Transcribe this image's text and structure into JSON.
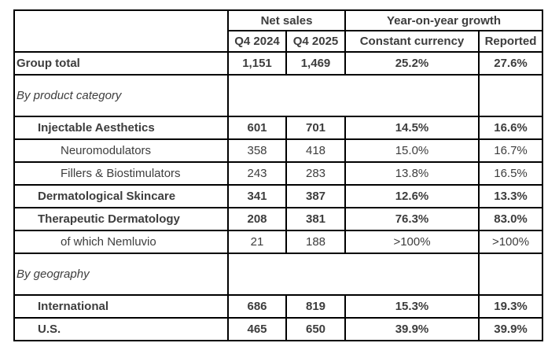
{
  "colors": {
    "border": "#000000",
    "text": "#3d3d3d",
    "background": "#ffffff"
  },
  "table": {
    "header": {
      "net_sales": "Net sales",
      "yoy_growth": "Year-on-year growth",
      "q4_2024": "Q4 2024",
      "q4_2025": "Q4 2025",
      "constant_currency": "Constant currency",
      "reported": "Reported"
    },
    "rows": [
      {
        "name": "group-total",
        "type": "data",
        "bold": true,
        "indent": 0,
        "label": "Group total",
        "values": [
          "1,151",
          "1,469",
          "25.2%",
          "27.6%"
        ]
      },
      {
        "name": "by-product-category",
        "type": "section",
        "label": "By product category"
      },
      {
        "name": "injectable-aesthetics",
        "type": "data",
        "bold": true,
        "indent": 1,
        "label": "Injectable Aesthetics",
        "values": [
          "601",
          "701",
          "14.5%",
          "16.6%"
        ]
      },
      {
        "name": "neuromodulators",
        "type": "data",
        "bold": false,
        "indent": 2,
        "label": "Neuromodulators",
        "values": [
          "358",
          "418",
          "15.0%",
          "16.7%"
        ]
      },
      {
        "name": "fillers-biostimulators",
        "type": "data",
        "bold": false,
        "indent": 2,
        "label": "Fillers & Biostimulators",
        "values": [
          "243",
          "283",
          "13.8%",
          "16.5%"
        ]
      },
      {
        "name": "dermatological-skincare",
        "type": "data",
        "bold": true,
        "indent": 1,
        "label": "Dermatological Skincare",
        "values": [
          "341",
          "387",
          "12.6%",
          "13.3%"
        ]
      },
      {
        "name": "therapeutic-dermatology",
        "type": "data",
        "bold": true,
        "indent": 1,
        "label": "Therapeutic Dermatology",
        "values": [
          "208",
          "381",
          "76.3%",
          "83.0%"
        ]
      },
      {
        "name": "of-which-nemluvio",
        "type": "data",
        "bold": false,
        "indent": 2,
        "label": "of which Nemluvio",
        "values": [
          "21",
          "188",
          ">100%",
          ">100%"
        ]
      },
      {
        "name": "by-geography",
        "type": "section",
        "label": "By geography"
      },
      {
        "name": "international",
        "type": "data",
        "bold": true,
        "indent": 1,
        "label": "International",
        "values": [
          "686",
          "819",
          "15.3%",
          "19.3%"
        ]
      },
      {
        "name": "us",
        "type": "data",
        "bold": true,
        "indent": 1,
        "label": "U.S.",
        "values": [
          "465",
          "650",
          "39.9%",
          "39.9%"
        ]
      }
    ]
  }
}
